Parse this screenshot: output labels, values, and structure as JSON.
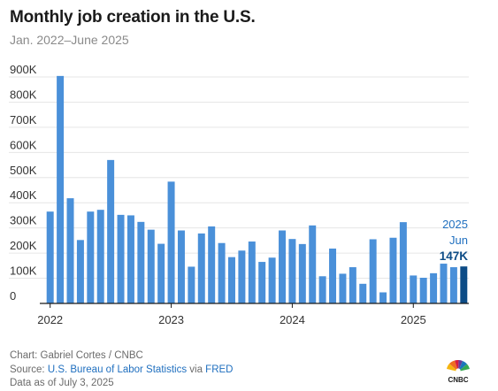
{
  "title": "Monthly job creation in the U.S.",
  "subtitle": "Jan. 2022–June 2025",
  "footer": {
    "chart_credit": "Chart: Gabriel Cortes / CNBC",
    "source_prefix": "Source: ",
    "source_link1": "U.S. Bureau of Labor Statistics",
    "source_via": " via ",
    "source_link2": "FRED",
    "data_note": "Data as of July 3, 2025"
  },
  "logo": {
    "text": "CNBC",
    "icon": "nbc-peacock-icon"
  },
  "colors": {
    "bar": "#4a90d9",
    "highlight": "#0d4c86",
    "grid": "#e6e6e6",
    "axis": "#1a1a1a"
  },
  "chart_data": {
    "type": "bar",
    "title": "Monthly job creation in the U.S.",
    "subtitle": "Jan. 2022–June 2025",
    "xlabel": "",
    "ylabel": "",
    "ylim": [
      0,
      900000
    ],
    "yticks": [
      0,
      100000,
      200000,
      300000,
      400000,
      500000,
      600000,
      700000,
      800000,
      900000
    ],
    "ytick_labels": [
      "0",
      "100K",
      "200K",
      "300K",
      "400K",
      "500K",
      "600K",
      "700K",
      "800K",
      "900K"
    ],
    "xtick_labels": [
      "2022",
      "2023",
      "2024",
      "2025"
    ],
    "grid": true,
    "categories": [
      "2022-01",
      "2022-02",
      "2022-03",
      "2022-04",
      "2022-05",
      "2022-06",
      "2022-07",
      "2022-08",
      "2022-09",
      "2022-10",
      "2022-11",
      "2022-12",
      "2023-01",
      "2023-02",
      "2023-03",
      "2023-04",
      "2023-05",
      "2023-06",
      "2023-07",
      "2023-08",
      "2023-09",
      "2023-10",
      "2023-11",
      "2023-12",
      "2024-01",
      "2024-02",
      "2024-03",
      "2024-04",
      "2024-05",
      "2024-06",
      "2024-07",
      "2024-08",
      "2024-09",
      "2024-10",
      "2024-11",
      "2024-12",
      "2025-01",
      "2025-02",
      "2025-03",
      "2025-04",
      "2025-05",
      "2025-06"
    ],
    "values": [
      365000,
      904000,
      418000,
      252000,
      365000,
      372000,
      570000,
      352000,
      350000,
      324000,
      293000,
      237000,
      484000,
      290000,
      146000,
      278000,
      306000,
      240000,
      184000,
      210000,
      246000,
      165000,
      182000,
      290000,
      256000,
      236000,
      310000,
      108000,
      218000,
      118000,
      144000,
      78000,
      255000,
      44000,
      261000,
      323000,
      111000,
      102000,
      120000,
      158000,
      144000,
      147000
    ],
    "annotation": {
      "line1": "2025",
      "line2": "Jun",
      "value": "147K"
    }
  }
}
